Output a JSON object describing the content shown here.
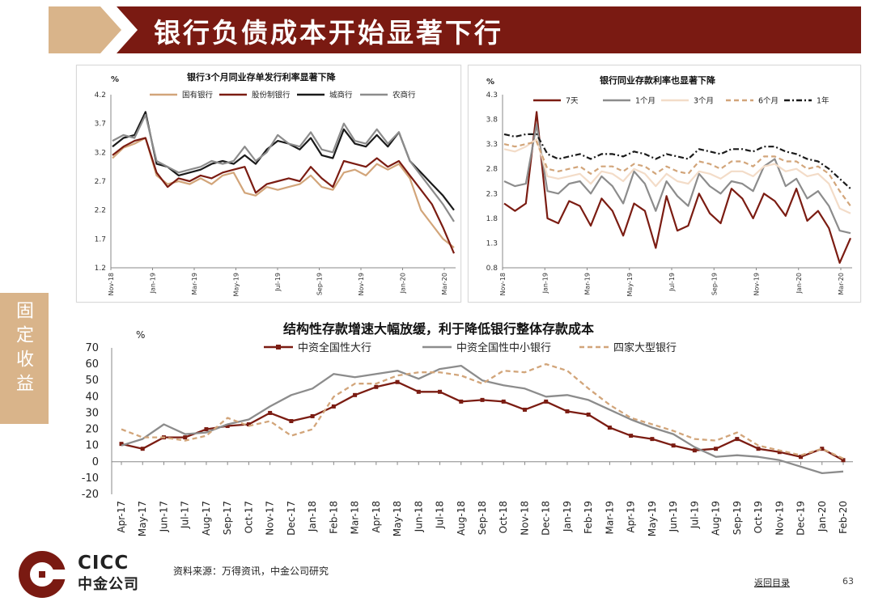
{
  "slide": {
    "title": "银行负债成本开始显著下行",
    "side_tab": "固定收益",
    "source": "资料来源：万得资讯，中金公司研究",
    "back_link": "返回目录",
    "page_number": "63",
    "logo_en": "CICC",
    "logo_cn": "中金公司"
  },
  "colors": {
    "title_bar": "#7a1a12",
    "title_arrow": "#d9b48a",
    "side_tab": "#d9b48a",
    "dark_red": "#7b1c12",
    "tan": "#d2a57a",
    "black": "#1a1a1a",
    "gray": "#8c8c8c",
    "pale": "#f3dcc8"
  },
  "chart_data": [
    {
      "id": "ncd",
      "type": "line",
      "title": "银行3个月同业存单发行利率显著下降",
      "unit": "%",
      "ylim": [
        1.2,
        4.2
      ],
      "yticks": [
        "4.2",
        "3.7",
        "3.2",
        "2.7",
        "2.2",
        "1.7",
        "1.2"
      ],
      "xticks": [
        "Nov-18",
        "Jan-19",
        "Mar-19",
        "May-19",
        "Jul-19",
        "Sep-19",
        "Nov-19",
        "Jan-20",
        "Mar-20"
      ],
      "x_index_range": [
        0,
        16
      ],
      "legend_position": "top",
      "series": [
        {
          "name": "国有银行",
          "color": "#d2a57a",
          "style": "solid",
          "values": [
            3.1,
            3.28,
            3.35,
            3.45,
            2.8,
            2.65,
            2.7,
            2.65,
            2.75,
            2.65,
            2.8,
            2.85,
            2.5,
            2.45,
            2.6,
            2.55,
            2.6,
            2.65,
            2.8,
            2.6,
            2.55,
            2.85,
            2.9,
            2.8,
            3.0,
            2.9,
            3.0,
            2.75,
            2.2,
            1.95,
            1.7,
            1.55
          ]
        },
        {
          "name": "股份制银行",
          "color": "#7b1c12",
          "style": "solid",
          "values": [
            3.15,
            3.3,
            3.4,
            3.45,
            2.85,
            2.6,
            2.75,
            2.7,
            2.8,
            2.75,
            2.85,
            2.9,
            2.95,
            2.5,
            2.65,
            2.7,
            2.75,
            2.7,
            2.95,
            2.75,
            2.6,
            3.05,
            3.0,
            2.95,
            3.1,
            2.95,
            3.05,
            2.8,
            2.55,
            2.3,
            1.9,
            1.45
          ]
        },
        {
          "name": "城商行",
          "color": "#1a1a1a",
          "style": "solid",
          "values": [
            3.3,
            3.45,
            3.5,
            3.9,
            3.0,
            2.95,
            2.8,
            2.85,
            2.9,
            3.0,
            3.05,
            3.0,
            3.15,
            3.0,
            3.25,
            3.4,
            3.35,
            3.25,
            3.45,
            3.15,
            3.1,
            3.6,
            3.35,
            3.3,
            3.5,
            3.3,
            3.55,
            3.05,
            2.85,
            2.65,
            2.45,
            2.2
          ]
        },
        {
          "name": "农商行",
          "color": "#8c8c8c",
          "style": "solid",
          "values": [
            3.4,
            3.5,
            3.45,
            3.85,
            3.05,
            2.95,
            2.85,
            2.9,
            2.95,
            3.05,
            3.0,
            3.05,
            3.3,
            3.05,
            3.2,
            3.5,
            3.35,
            3.3,
            3.55,
            3.25,
            3.2,
            3.7,
            3.4,
            3.35,
            3.6,
            3.35,
            3.55,
            3.05,
            2.8,
            2.55,
            2.3,
            2.0
          ]
        }
      ]
    },
    {
      "id": "interbank",
      "type": "line",
      "title": "银行同业存款利率也显著下降",
      "unit": "%",
      "ylim": [
        0.8,
        4.3
      ],
      "yticks": [
        "4.3",
        "3.8",
        "3.3",
        "2.8",
        "2.3",
        "1.8",
        "1.3",
        "0.8"
      ],
      "xticks": [
        "Nov-18",
        "Jan-19",
        "Mar-19",
        "May-19",
        "Jul-19",
        "Sep-19",
        "Nov-19",
        "Jan-20",
        "Mar-20"
      ],
      "x_index_range": [
        0,
        16
      ],
      "legend_position": "top",
      "series": [
        {
          "name": "7天",
          "color": "#7b1c12",
          "style": "solid",
          "values": [
            2.1,
            1.95,
            2.1,
            3.95,
            1.8,
            1.7,
            2.15,
            2.05,
            1.65,
            2.2,
            1.95,
            1.45,
            2.1,
            1.95,
            1.2,
            2.25,
            1.55,
            1.65,
            2.3,
            1.9,
            1.7,
            2.4,
            2.2,
            1.8,
            2.3,
            2.15,
            1.85,
            2.4,
            1.75,
            1.95,
            1.6,
            0.9,
            1.4
          ]
        },
        {
          "name": "1个月",
          "color": "#8c8c8c",
          "style": "solid",
          "values": [
            2.55,
            2.45,
            2.5,
            3.7,
            2.35,
            2.3,
            2.5,
            2.55,
            2.3,
            2.65,
            2.45,
            2.1,
            2.75,
            2.5,
            1.95,
            2.55,
            2.25,
            2.05,
            2.7,
            2.45,
            2.3,
            2.55,
            2.5,
            2.35,
            2.85,
            3.0,
            2.45,
            2.6,
            2.2,
            2.35,
            2.05,
            1.55,
            1.5
          ]
        },
        {
          "name": "3个月",
          "color": "#f3dcc8",
          "style": "solid",
          "values": [
            3.2,
            3.15,
            3.25,
            3.4,
            2.65,
            2.6,
            2.65,
            2.7,
            2.5,
            2.75,
            2.7,
            2.55,
            2.8,
            2.7,
            2.45,
            2.7,
            2.55,
            2.5,
            2.75,
            2.7,
            2.6,
            2.75,
            2.75,
            2.65,
            2.85,
            2.9,
            2.75,
            2.8,
            2.65,
            2.7,
            2.5,
            2.0,
            1.9
          ]
        },
        {
          "name": "6个月",
          "color": "#d2a57a",
          "style": "dashed",
          "values": [
            3.3,
            3.25,
            3.3,
            3.35,
            2.8,
            2.75,
            2.8,
            2.85,
            2.7,
            2.85,
            2.85,
            2.75,
            2.9,
            2.85,
            2.7,
            2.85,
            2.75,
            2.7,
            2.95,
            2.9,
            2.8,
            2.95,
            2.95,
            2.85,
            3.05,
            3.05,
            2.95,
            2.95,
            2.8,
            2.85,
            2.7,
            2.35,
            2.05
          ]
        },
        {
          "name": "1年",
          "color": "#1a1a1a",
          "style": "dashdot",
          "values": [
            3.5,
            3.45,
            3.5,
            3.5,
            3.1,
            3.0,
            3.05,
            3.1,
            3.0,
            3.1,
            3.1,
            3.05,
            3.15,
            3.1,
            3.0,
            3.1,
            3.05,
            3.0,
            3.2,
            3.15,
            3.1,
            3.2,
            3.2,
            3.15,
            3.25,
            3.25,
            3.15,
            3.1,
            3.0,
            2.95,
            2.8,
            2.6,
            2.4
          ]
        }
      ]
    },
    {
      "id": "structured",
      "type": "line",
      "title": "结构性存款增速大幅放缓，利于降低银行整体存款成本",
      "unit": "%",
      "ylim": [
        -20,
        70
      ],
      "yticks": [
        "70",
        "60",
        "50",
        "40",
        "30",
        "20",
        "10",
        "0",
        "-10",
        "-20"
      ],
      "legend_position": "top",
      "categories": [
        "Apr-17",
        "May-17",
        "Jun-17",
        "Jul-17",
        "Aug-17",
        "Sep-17",
        "Oct-17",
        "Nov-17",
        "Dec-17",
        "Jan-18",
        "Feb-18",
        "Mar-18",
        "Apr-18",
        "May-18",
        "Jun-18",
        "Jul-18",
        "Aug-18",
        "Sep-18",
        "Oct-18",
        "Nov-18",
        "Dec-18",
        "Jan-19",
        "Feb-19",
        "Mar-19",
        "Apr-19",
        "May-19",
        "Jun-19",
        "Jul-19",
        "Aug-19",
        "Sep-19",
        "Oct-19",
        "Nov-19",
        "Dec-19",
        "Jan-20",
        "Feb-20"
      ],
      "series": [
        {
          "name": "中资全国性大行",
          "color": "#7b1c12",
          "style": "solid",
          "marker": "square",
          "values": [
            11,
            8,
            15,
            15,
            20,
            22,
            23,
            30,
            25,
            28,
            34,
            41,
            46,
            49,
            43,
            43,
            37,
            38,
            37,
            32,
            37,
            31,
            29,
            21,
            16,
            14,
            10,
            7,
            8,
            14,
            8,
            6,
            3,
            8,
            1
          ]
        },
        {
          "name": "中资全国性中小银行",
          "color": "#8c8c8c",
          "style": "solid",
          "marker": "none",
          "values": [
            10,
            14,
            23,
            17,
            18,
            23,
            26,
            34,
            41,
            45,
            54,
            52,
            54,
            56,
            51,
            57,
            59,
            50,
            47,
            45,
            40,
            41,
            38,
            32,
            26,
            21,
            17,
            9,
            3,
            4,
            3,
            1,
            -3,
            -7,
            -6
          ]
        },
        {
          "name": "四家大型银行",
          "color": "#d2a57a",
          "style": "dashed",
          "marker": "none",
          "values": [
            20,
            15,
            15,
            13,
            16,
            27,
            22,
            25,
            16,
            20,
            40,
            48,
            48,
            53,
            55,
            55,
            53,
            48,
            56,
            55,
            60,
            56,
            45,
            35,
            27,
            23,
            19,
            14,
            13,
            18,
            10,
            7,
            4,
            8,
            2
          ]
        }
      ]
    }
  ]
}
